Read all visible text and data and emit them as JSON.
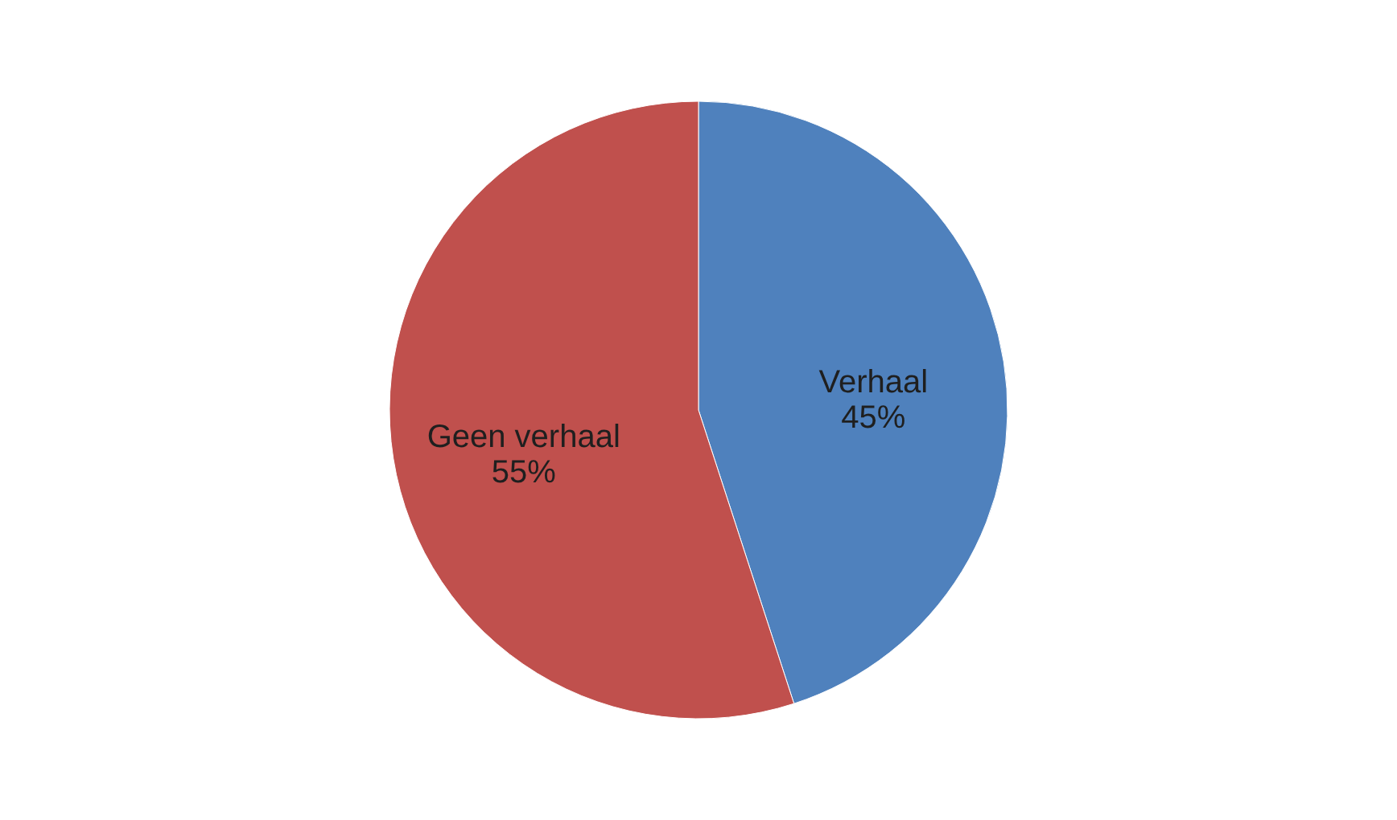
{
  "chart_data": {
    "type": "pie",
    "categories": [
      "Verhaal",
      "Geen verhaal"
    ],
    "values": [
      45,
      55
    ],
    "colors": [
      "#4f81bd",
      "#c0504d"
    ],
    "value_labels": [
      "45%",
      "55%"
    ],
    "legend": false
  }
}
